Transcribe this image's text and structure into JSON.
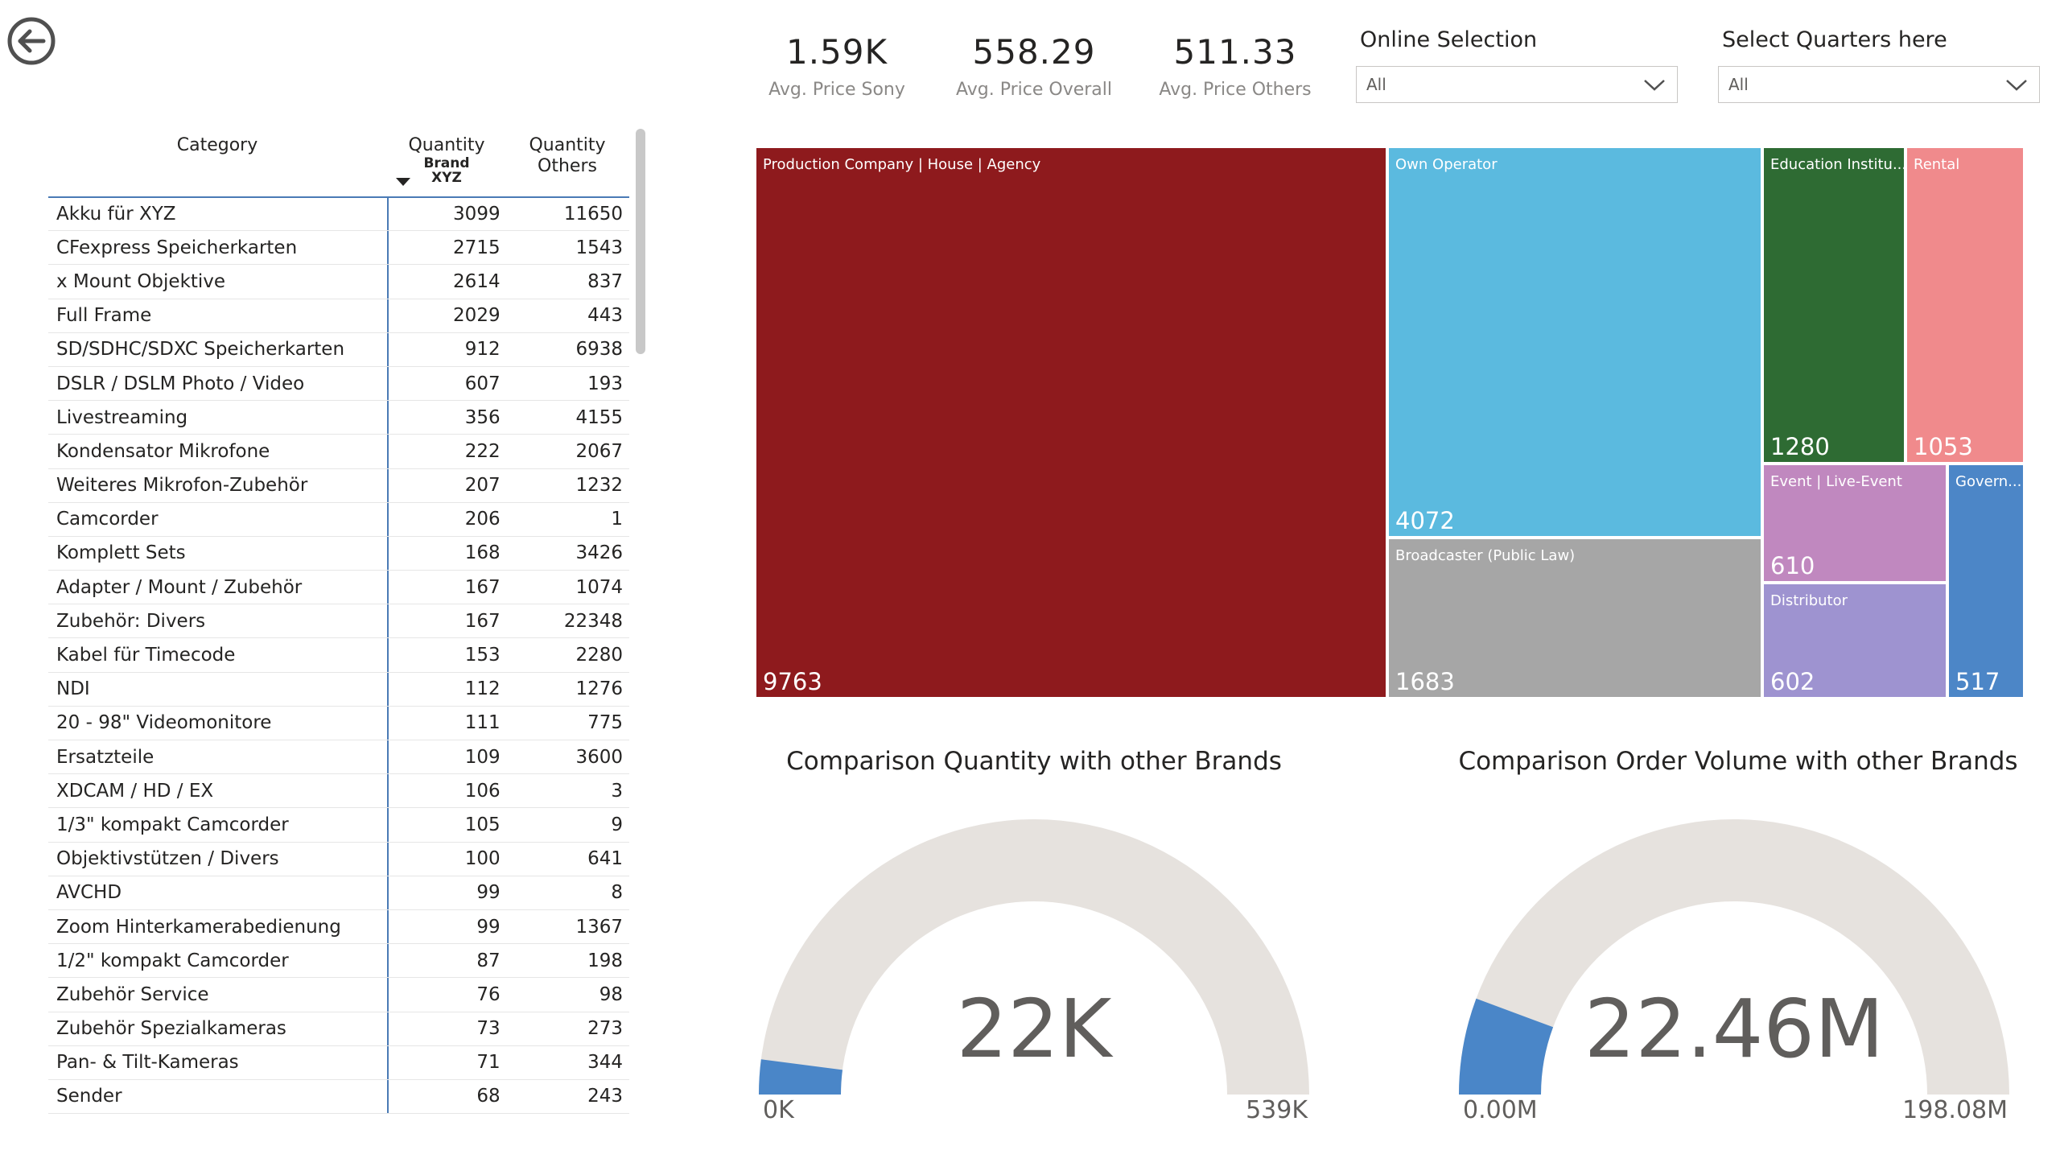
{
  "nav": {
    "back_icon": "back-arrow-icon"
  },
  "kpis": [
    {
      "value": "1.59K",
      "label": "Avg. Price Sony"
    },
    {
      "value": "558.29",
      "label": "Avg. Price Overall"
    },
    {
      "value": "511.33",
      "label": "Avg. Price Others"
    }
  ],
  "slicers": {
    "online": {
      "title": "Online Selection",
      "selected": "All"
    },
    "quarters": {
      "title": "Select Quarters here",
      "selected": "All"
    }
  },
  "table": {
    "headers": {
      "category": "Category",
      "qty_brand_line1": "Quantity",
      "qty_brand_line2": "Brand",
      "qty_brand_line3": "XYZ",
      "qty_others_line1": "Quantity",
      "qty_others_line2": "Others"
    },
    "rows": [
      [
        "Akku für XYZ",
        "3099",
        "11650"
      ],
      [
        "CFexpress Speicherkarten",
        "2715",
        "1543"
      ],
      [
        "x Mount Objektive",
        "2614",
        "837"
      ],
      [
        "Full Frame",
        "2029",
        "443"
      ],
      [
        "SD/SDHC/SDXC Speicherkarten",
        "912",
        "6938"
      ],
      [
        "DSLR / DSLM Photo / Video",
        "607",
        "193"
      ],
      [
        "Livestreaming",
        "356",
        "4155"
      ],
      [
        "Kondensator Mikrofone",
        "222",
        "2067"
      ],
      [
        "Weiteres Mikrofon-Zubehör",
        "207",
        "1232"
      ],
      [
        "Camcorder",
        "206",
        "1"
      ],
      [
        "Komplett Sets",
        "168",
        "3426"
      ],
      [
        "Adapter / Mount / Zubehör",
        "167",
        "1074"
      ],
      [
        "Zubehör: Divers",
        "167",
        "22348"
      ],
      [
        "Kabel für Timecode",
        "153",
        "2280"
      ],
      [
        "NDI",
        "112",
        "1276"
      ],
      [
        "20 - 98\" Videomonitore",
        "111",
        "775"
      ],
      [
        "Ersatzteile",
        "109",
        "3600"
      ],
      [
        "XDCAM / HD / EX",
        "106",
        "3"
      ],
      [
        "1/3\" kompakt Camcorder",
        "105",
        "9"
      ],
      [
        "Objektivstützen / Divers",
        "100",
        "641"
      ],
      [
        "AVCHD",
        "99",
        "8"
      ],
      [
        "Zoom Hinterkamerabedienung",
        "99",
        "1367"
      ],
      [
        "1/2\" kompakt Camcorder",
        "87",
        "198"
      ],
      [
        "Zubehör Service",
        "76",
        "98"
      ],
      [
        "Zubehör Spezialkameras",
        "73",
        "273"
      ],
      [
        "Pan- & Tilt-Kameras",
        "71",
        "344"
      ],
      [
        "Sender",
        "68",
        "243"
      ]
    ]
  },
  "treemap": [
    {
      "label": "Production Company | House | Agency",
      "value": "9763",
      "color": "#8e1a1d"
    },
    {
      "label": "Own Operator",
      "value": "4072",
      "color": "#5bbadf"
    },
    {
      "label": "Broadcaster (Public Law)",
      "value": "1683",
      "color": "#a6a6a6"
    },
    {
      "label": "Education Institu...",
      "value": "1280",
      "color": "#2e6b33"
    },
    {
      "label": "Rental",
      "value": "1053",
      "color": "#f08a8c"
    },
    {
      "label": "Event | Live-Event",
      "value": "610",
      "color": "#c088bf"
    },
    {
      "label": "Distributor",
      "value": "602",
      "color": "#9e93d0"
    },
    {
      "label": "Govern...",
      "value": "517",
      "color": "#4c86c7"
    }
  ],
  "gauges": [
    {
      "title": "Comparison Quantity with other Brands",
      "value_label": "22K",
      "min_label": "0K",
      "max_label": "539K",
      "fraction": 0.0408,
      "fill": "#4a86c8",
      "track": "#e6e2de"
    },
    {
      "title": "Comparison Order Volume with other Brands",
      "value_label": "22.46M",
      "min_label": "0.00M",
      "max_label": "198.08M",
      "fraction": 0.1134,
      "fill": "#4a86c8",
      "track": "#e6e2de"
    }
  ]
}
